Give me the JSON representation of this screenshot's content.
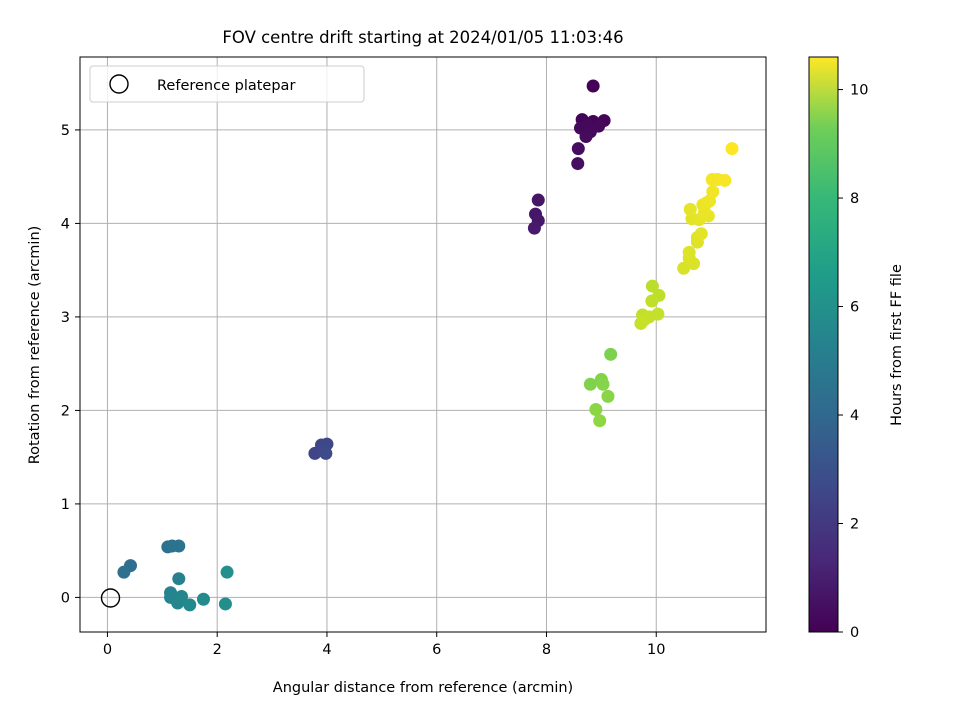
{
  "chart_data": {
    "type": "scatter",
    "title": "FOV centre drift starting at 2024/01/05 11:03:46",
    "xlabel": "Angular distance from reference (arcmin)",
    "ylabel": "Rotation from reference (arcmin)",
    "xlim": [
      -0.5,
      12.0
    ],
    "ylim": [
      -0.37,
      5.78
    ],
    "xticks": [
      0,
      2,
      4,
      6,
      8,
      10
    ],
    "yticks": [
      0,
      1,
      2,
      3,
      4,
      5
    ],
    "grid": true,
    "legend": {
      "placement": "top-left",
      "entries": [
        "Reference platepar"
      ]
    },
    "reference_point": {
      "label": "Reference platepar",
      "x": 0,
      "y": 0
    },
    "colorbar": {
      "label": "Hours from first FF file",
      "range": [
        0,
        10.6
      ],
      "ticks": [
        0,
        2,
        4,
        6,
        8,
        10
      ],
      "colormap": "viridis"
    },
    "points": [
      {
        "x": 8.85,
        "y": 5.47,
        "h": 0.05
      },
      {
        "x": 8.65,
        "y": 5.11,
        "h": 0.1
      },
      {
        "x": 8.85,
        "y": 5.09,
        "h": 0.12
      },
      {
        "x": 9.05,
        "y": 5.1,
        "h": 0.15
      },
      {
        "x": 8.75,
        "y": 5.05,
        "h": 0.2
      },
      {
        "x": 8.95,
        "y": 5.04,
        "h": 0.22
      },
      {
        "x": 8.62,
        "y": 5.02,
        "h": 0.25
      },
      {
        "x": 8.8,
        "y": 4.98,
        "h": 0.28
      },
      {
        "x": 8.72,
        "y": 4.93,
        "h": 0.3
      },
      {
        "x": 8.58,
        "y": 4.8,
        "h": 0.35
      },
      {
        "x": 8.57,
        "y": 4.64,
        "h": 0.4
      },
      {
        "x": 7.85,
        "y": 4.25,
        "h": 0.6
      },
      {
        "x": 7.8,
        "y": 4.1,
        "h": 0.65
      },
      {
        "x": 7.85,
        "y": 4.03,
        "h": 0.7
      },
      {
        "x": 7.78,
        "y": 3.95,
        "h": 0.75
      },
      {
        "x": 3.78,
        "y": 1.54,
        "h": 2.2
      },
      {
        "x": 3.9,
        "y": 1.63,
        "h": 2.25
      },
      {
        "x": 4.0,
        "y": 1.64,
        "h": 2.3
      },
      {
        "x": 3.95,
        "y": 1.58,
        "h": 2.35
      },
      {
        "x": 3.98,
        "y": 1.54,
        "h": 2.4
      },
      {
        "x": 0.42,
        "y": 0.34,
        "h": 3.8
      },
      {
        "x": 0.3,
        "y": 0.27,
        "h": 3.9
      },
      {
        "x": 1.1,
        "y": 0.54,
        "h": 3.95
      },
      {
        "x": 1.18,
        "y": 0.55,
        "h": 4.0
      },
      {
        "x": 1.3,
        "y": 0.55,
        "h": 4.05
      },
      {
        "x": 1.3,
        "y": 0.2,
        "h": 4.6
      },
      {
        "x": 1.15,
        "y": 0.05,
        "h": 4.7
      },
      {
        "x": 1.15,
        "y": 0.0,
        "h": 4.8
      },
      {
        "x": 1.35,
        "y": 0.01,
        "h": 4.85
      },
      {
        "x": 1.28,
        "y": -0.06,
        "h": 4.9
      },
      {
        "x": 1.5,
        "y": -0.08,
        "h": 5.0
      },
      {
        "x": 1.75,
        "y": -0.02,
        "h": 5.1
      },
      {
        "x": 2.15,
        "y": -0.07,
        "h": 5.2
      },
      {
        "x": 2.18,
        "y": 0.27,
        "h": 5.3
      },
      {
        "x": 9.17,
        "y": 2.6,
        "h": 8.5
      },
      {
        "x": 8.8,
        "y": 2.28,
        "h": 8.55
      },
      {
        "x": 9.0,
        "y": 2.33,
        "h": 8.6
      },
      {
        "x": 9.03,
        "y": 2.28,
        "h": 8.65
      },
      {
        "x": 9.12,
        "y": 2.15,
        "h": 8.7
      },
      {
        "x": 8.9,
        "y": 2.01,
        "h": 8.75
      },
      {
        "x": 8.97,
        "y": 1.89,
        "h": 8.8
      },
      {
        "x": 9.93,
        "y": 3.33,
        "h": 9.5
      },
      {
        "x": 10.05,
        "y": 3.23,
        "h": 9.55
      },
      {
        "x": 9.92,
        "y": 3.17,
        "h": 9.6
      },
      {
        "x": 9.75,
        "y": 3.02,
        "h": 9.62
      },
      {
        "x": 9.87,
        "y": 3.0,
        "h": 9.65
      },
      {
        "x": 10.03,
        "y": 3.03,
        "h": 9.68
      },
      {
        "x": 9.78,
        "y": 2.97,
        "h": 9.7
      },
      {
        "x": 9.72,
        "y": 2.93,
        "h": 9.72
      },
      {
        "x": 10.5,
        "y": 3.52,
        "h": 10.0
      },
      {
        "x": 10.68,
        "y": 3.57,
        "h": 10.02
      },
      {
        "x": 10.6,
        "y": 3.63,
        "h": 10.05
      },
      {
        "x": 10.6,
        "y": 3.69,
        "h": 10.08
      },
      {
        "x": 10.75,
        "y": 3.8,
        "h": 10.1
      },
      {
        "x": 10.75,
        "y": 3.85,
        "h": 10.12
      },
      {
        "x": 10.82,
        "y": 3.89,
        "h": 10.15
      },
      {
        "x": 10.65,
        "y": 4.05,
        "h": 10.18
      },
      {
        "x": 10.78,
        "y": 4.04,
        "h": 10.2
      },
      {
        "x": 10.62,
        "y": 4.15,
        "h": 10.22
      },
      {
        "x": 10.95,
        "y": 4.08,
        "h": 10.25
      },
      {
        "x": 10.88,
        "y": 4.12,
        "h": 10.28
      },
      {
        "x": 10.85,
        "y": 4.2,
        "h": 10.3
      },
      {
        "x": 10.92,
        "y": 4.22,
        "h": 10.32
      },
      {
        "x": 10.97,
        "y": 4.24,
        "h": 10.35
      },
      {
        "x": 11.03,
        "y": 4.34,
        "h": 10.38
      },
      {
        "x": 11.02,
        "y": 4.47,
        "h": 10.42
      },
      {
        "x": 11.12,
        "y": 4.47,
        "h": 10.45
      },
      {
        "x": 11.25,
        "y": 4.46,
        "h": 10.48
      },
      {
        "x": 11.38,
        "y": 4.8,
        "h": 10.6
      }
    ]
  }
}
